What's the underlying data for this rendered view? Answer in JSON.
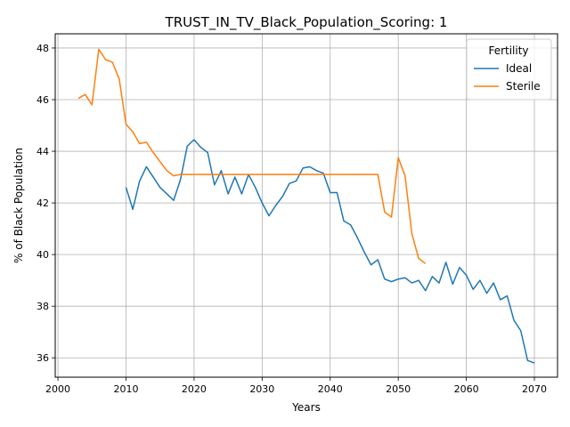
{
  "chart_data": {
    "type": "line",
    "title": "TRUST_IN_TV_Black_Population_Scoring: 1",
    "xlabel": "Years",
    "ylabel": "% of Black Population",
    "xlim": [
      1999.6,
      2073.4
    ],
    "ylim": [
      35.25,
      48.55
    ],
    "xticks": [
      2000,
      2010,
      2020,
      2030,
      2040,
      2050,
      2060,
      2070
    ],
    "yticks": [
      36,
      38,
      40,
      42,
      44,
      46,
      48
    ],
    "grid": true,
    "legend": {
      "title": "Fertility",
      "position": "top-right"
    },
    "series": [
      {
        "name": "Ideal",
        "color": "#1f77b4",
        "x": [
          2010,
          2011,
          2012,
          2013,
          2014,
          2015,
          2016,
          2017,
          2018,
          2019,
          2020,
          2021,
          2022,
          2023,
          2024,
          2025,
          2026,
          2027,
          2028,
          2029,
          2030,
          2031,
          2032,
          2033,
          2034,
          2035,
          2036,
          2037,
          2038,
          2039,
          2040,
          2041,
          2042,
          2043,
          2044,
          2045,
          2046,
          2047,
          2048,
          2049,
          2050,
          2051,
          2052,
          2053,
          2054,
          2055,
          2056,
          2057,
          2058,
          2059,
          2060,
          2061,
          2062,
          2063,
          2064,
          2065,
          2066,
          2067,
          2068,
          2069,
          2070
        ],
        "y": [
          42.6,
          41.75,
          42.85,
          43.4,
          43.0,
          42.6,
          42.35,
          42.1,
          42.9,
          44.2,
          44.45,
          44.15,
          43.95,
          42.7,
          43.25,
          42.35,
          43.0,
          42.35,
          43.1,
          42.6,
          42.0,
          41.5,
          41.9,
          42.25,
          42.75,
          42.85,
          43.35,
          43.4,
          43.25,
          43.15,
          42.4,
          42.4,
          41.3,
          41.15,
          40.65,
          40.1,
          39.6,
          39.8,
          39.05,
          38.95,
          39.05,
          39.1,
          38.9,
          39.0,
          38.6,
          39.15,
          38.9,
          39.7,
          38.85,
          39.5,
          39.2,
          38.65,
          39.0,
          38.5,
          38.9,
          38.25,
          38.4,
          37.45,
          37.05,
          35.9,
          35.8
        ]
      },
      {
        "name": "Sterile",
        "color": "#ff7f0e",
        "x": [
          2003,
          2004,
          2005,
          2006,
          2007,
          2008,
          2009,
          2010,
          2011,
          2012,
          2013,
          2014,
          2015,
          2016,
          2017,
          2018,
          2019,
          2020,
          2021,
          2022,
          2023,
          2024,
          2025,
          2026,
          2027,
          2028,
          2029,
          2030,
          2031,
          2032,
          2033,
          2034,
          2035,
          2036,
          2037,
          2038,
          2039,
          2040,
          2041,
          2042,
          2043,
          2044,
          2045,
          2046,
          2047,
          2048,
          2049,
          2050,
          2051,
          2052,
          2053,
          2054
        ],
        "y": [
          46.05,
          46.2,
          45.8,
          47.95,
          47.55,
          47.45,
          46.8,
          45.05,
          44.75,
          44.3,
          44.35,
          43.95,
          43.6,
          43.25,
          43.05,
          43.1,
          43.1,
          43.1,
          43.1,
          43.1,
          43.1,
          43.1,
          43.1,
          43.1,
          43.1,
          43.1,
          43.1,
          43.1,
          43.1,
          43.1,
          43.1,
          43.1,
          43.1,
          43.1,
          43.1,
          43.1,
          43.1,
          43.1,
          43.1,
          43.1,
          43.1,
          43.1,
          43.1,
          43.1,
          43.1,
          41.65,
          41.45,
          43.75,
          43.05,
          40.8,
          39.85,
          39.65
        ]
      }
    ]
  }
}
